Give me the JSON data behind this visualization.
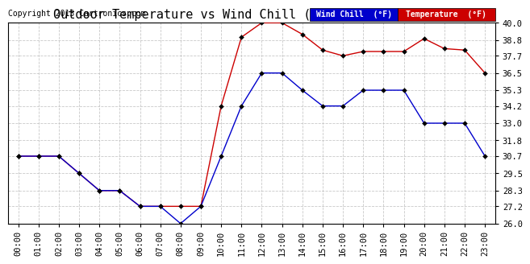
{
  "title": "Outdoor Temperature vs Wind Chill (24 Hours)  20131202",
  "copyright": "Copyright 2013 Cartronics.com",
  "hours": [
    "00:00",
    "01:00",
    "02:00",
    "03:00",
    "04:00",
    "05:00",
    "06:00",
    "07:00",
    "08:00",
    "09:00",
    "10:00",
    "11:00",
    "12:00",
    "13:00",
    "14:00",
    "15:00",
    "16:00",
    "17:00",
    "18:00",
    "19:00",
    "20:00",
    "21:00",
    "22:00",
    "23:00"
  ],
  "temperature": [
    30.7,
    30.7,
    30.7,
    29.5,
    28.3,
    28.3,
    27.2,
    27.2,
    27.2,
    27.2,
    34.2,
    39.0,
    40.0,
    40.0,
    39.2,
    38.1,
    37.7,
    38.0,
    38.0,
    38.0,
    38.9,
    38.2,
    38.1,
    36.5
  ],
  "wind_chill": [
    30.7,
    30.7,
    30.7,
    29.5,
    28.3,
    28.3,
    27.2,
    27.2,
    26.0,
    27.2,
    30.7,
    34.2,
    36.5,
    36.5,
    35.3,
    34.2,
    34.2,
    35.3,
    35.3,
    35.3,
    33.0,
    33.0,
    33.0,
    30.7
  ],
  "temp_color": "#cc0000",
  "wind_chill_color": "#0000cc",
  "marker": "D",
  "marker_size": 3,
  "ylim": [
    26.0,
    40.0
  ],
  "yticks": [
    26.0,
    27.2,
    28.3,
    29.5,
    30.7,
    31.8,
    33.0,
    34.2,
    35.3,
    36.5,
    37.7,
    38.8,
    40.0
  ],
  "background_color": "#ffffff",
  "grid_color": "#bbbbbb",
  "title_fontsize": 11,
  "tick_fontsize": 7.5,
  "copyright_fontsize": 7,
  "legend_wc_bg": "#0000cc",
  "legend_temp_bg": "#cc0000",
  "legend_text": [
    "Wind Chill  (°F)",
    "Temperature  (°F)"
  ]
}
